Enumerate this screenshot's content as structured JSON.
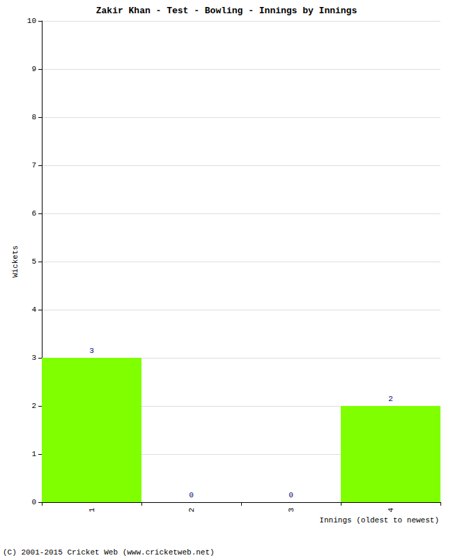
{
  "chart_data": {
    "type": "bar",
    "title": "Zakir Khan - Test - Bowling - Innings by Innings",
    "x_label": "Innings (oldest to newest)",
    "y_label": "Wickets",
    "categories": [
      "1",
      "2",
      "3",
      "4"
    ],
    "values": [
      3,
      0,
      0,
      2
    ],
    "color": "#7fff00",
    "ylim": [
      0,
      10
    ],
    "yticks": [
      0,
      1,
      2,
      3,
      4,
      5,
      6,
      7,
      8,
      9,
      10
    ],
    "grid": true,
    "data_labels": true,
    "annotations": [
      "(C) 2001-2015 Cricket Web (www.cricketweb.net)"
    ]
  }
}
